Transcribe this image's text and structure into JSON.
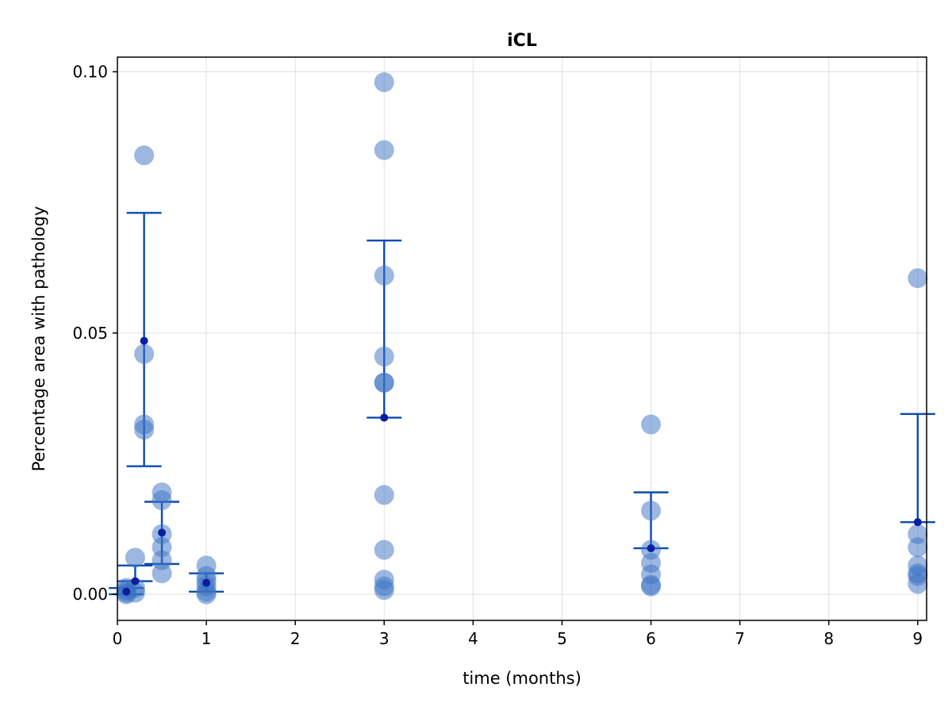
{
  "chart_data": {
    "type": "scatter",
    "title": "iCL",
    "xlabel": "time (months)",
    "ylabel": "Percentage area with pathology",
    "xlim": [
      0,
      9.1
    ],
    "ylim": [
      -0.005,
      0.1028
    ],
    "xticks": [
      0,
      1,
      2,
      3,
      4,
      5,
      6,
      7,
      8,
      9
    ],
    "xtick_labels": [
      "0",
      "1",
      "2",
      "3",
      "4",
      "5",
      "6",
      "7",
      "8",
      "9"
    ],
    "yticks": [
      0.0,
      0.05,
      0.1
    ],
    "ytick_labels": [
      "0.00",
      "0.05",
      "0.10"
    ],
    "grid": true,
    "colors": {
      "points": "#3a72c4",
      "mean": "#0b1f9e",
      "errorbar": "#0a4bb0"
    },
    "points": [
      {
        "x": 0.1,
        "y": 0.0
      },
      {
        "x": 0.1,
        "y": 0.0003
      },
      {
        "x": 0.1,
        "y": 0.0007
      },
      {
        "x": 0.1,
        "y": 0.0012
      },
      {
        "x": 0.2,
        "y": 0.0003
      },
      {
        "x": 0.2,
        "y": 0.0012
      },
      {
        "x": 0.2,
        "y": 0.007
      },
      {
        "x": 0.3,
        "y": 0.084
      },
      {
        "x": 0.3,
        "y": 0.046
      },
      {
        "x": 0.3,
        "y": 0.0325
      },
      {
        "x": 0.3,
        "y": 0.0315
      },
      {
        "x": 0.5,
        "y": 0.0195
      },
      {
        "x": 0.5,
        "y": 0.018
      },
      {
        "x": 0.5,
        "y": 0.0115
      },
      {
        "x": 0.5,
        "y": 0.009
      },
      {
        "x": 0.5,
        "y": 0.0065
      },
      {
        "x": 0.5,
        "y": 0.004
      },
      {
        "x": 1.0,
        "y": 0.0055
      },
      {
        "x": 1.0,
        "y": 0.0035
      },
      {
        "x": 1.0,
        "y": 0.0025
      },
      {
        "x": 1.0,
        "y": 0.0015
      },
      {
        "x": 1.0,
        "y": 0.0005
      },
      {
        "x": 1.0,
        "y": 0.0
      },
      {
        "x": 3.0,
        "y": 0.098
      },
      {
        "x": 3.0,
        "y": 0.085
      },
      {
        "x": 3.0,
        "y": 0.061
      },
      {
        "x": 3.0,
        "y": 0.0455
      },
      {
        "x": 3.0,
        "y": 0.0405
      },
      {
        "x": 3.0,
        "y": 0.0405
      },
      {
        "x": 3.0,
        "y": 0.019
      },
      {
        "x": 3.0,
        "y": 0.0085
      },
      {
        "x": 3.0,
        "y": 0.0028
      },
      {
        "x": 3.0,
        "y": 0.0015
      },
      {
        "x": 3.0,
        "y": 0.0008
      },
      {
        "x": 6.0,
        "y": 0.0325
      },
      {
        "x": 6.0,
        "y": 0.016
      },
      {
        "x": 6.0,
        "y": 0.0085
      },
      {
        "x": 6.0,
        "y": 0.006
      },
      {
        "x": 6.0,
        "y": 0.0038
      },
      {
        "x": 6.0,
        "y": 0.0018
      },
      {
        "x": 6.0,
        "y": 0.0015
      },
      {
        "x": 9.0,
        "y": 0.0605
      },
      {
        "x": 9.0,
        "y": 0.0115
      },
      {
        "x": 9.0,
        "y": 0.009
      },
      {
        "x": 9.0,
        "y": 0.0055
      },
      {
        "x": 9.0,
        "y": 0.004
      },
      {
        "x": 9.0,
        "y": 0.0035
      },
      {
        "x": 9.0,
        "y": 0.002
      }
    ],
    "summary": [
      {
        "x": 0.1,
        "mean": 0.0005,
        "low": 0.0,
        "high": 0.0012
      },
      {
        "x": 0.2,
        "mean": 0.0025,
        "low": 0.0025,
        "high": 0.0055
      },
      {
        "x": 0.3,
        "mean": 0.0485,
        "low": 0.0245,
        "high": 0.073
      },
      {
        "x": 0.5,
        "mean": 0.0118,
        "low": 0.0058,
        "high": 0.0177
      },
      {
        "x": 1.0,
        "mean": 0.0022,
        "low": 0.0005,
        "high": 0.004
      },
      {
        "x": 3.0,
        "mean": 0.0338,
        "low": 0.0338,
        "high": 0.0677
      },
      {
        "x": 6.0,
        "mean": 0.0088,
        "low": 0.0088,
        "high": 0.0195
      },
      {
        "x": 9.0,
        "mean": 0.0138,
        "low": 0.0138,
        "high": 0.0345
      }
    ]
  }
}
